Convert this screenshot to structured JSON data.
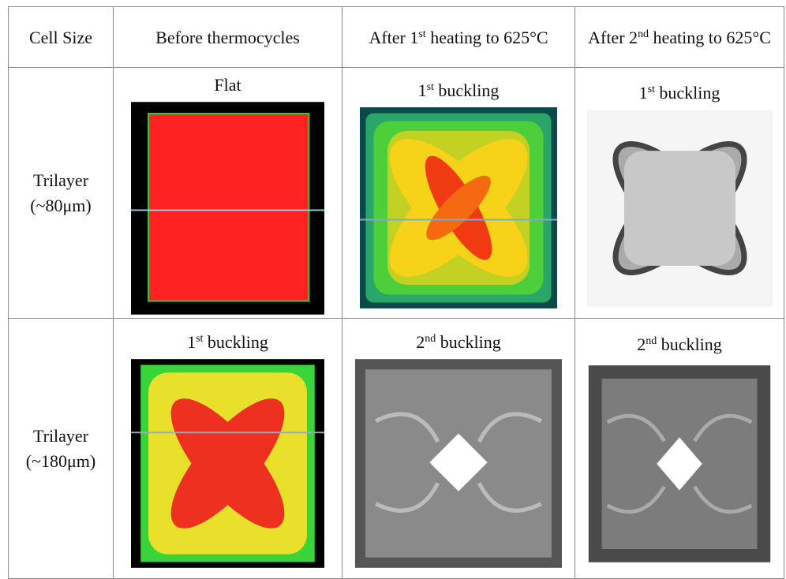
{
  "header": [
    [
      "Cell Size"
    ],
    [
      "Before thermocycles"
    ],
    [
      "After 1",
      "st",
      " heating to 625°C"
    ],
    [
      "After 2",
      "nd",
      " heating to 625°C"
    ]
  ],
  "rows": [
    {
      "label": [
        "Trilayer",
        "(~80μm)"
      ],
      "captions": [
        [
          "Flat"
        ],
        [
          "1",
          "st",
          " buckling"
        ],
        [
          "1",
          "st",
          " buckling"
        ]
      ]
    },
    {
      "label": [
        "Trilayer",
        "(~180μm)"
      ],
      "captions": [
        [
          "1",
          "st",
          " buckling"
        ],
        [
          "2",
          "nd",
          " buckling"
        ],
        [
          "2",
          "nd",
          " buckling"
        ]
      ]
    }
  ]
}
